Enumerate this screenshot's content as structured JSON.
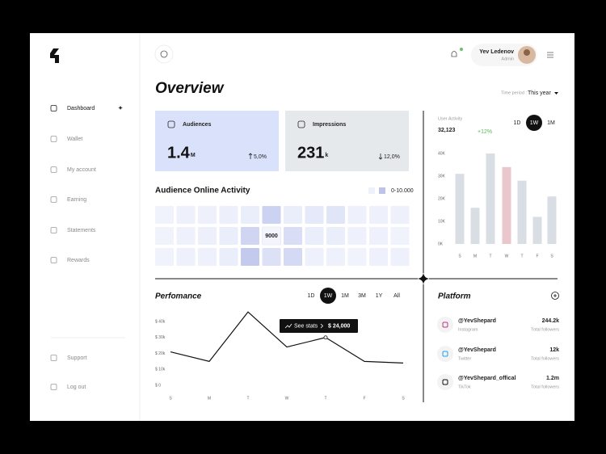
{
  "sidebar": {
    "nav": [
      "Dashboard",
      "Wallet",
      "My account",
      "Earning",
      "Statements",
      "Rewards"
    ],
    "active": 0,
    "bottom": [
      "Support",
      "Log out"
    ]
  },
  "header": {
    "name": "Yev Ledenov",
    "role": "Admin"
  },
  "overview": {
    "title": "Overview",
    "period_label": "Time period :",
    "period": "This year",
    "cards": [
      {
        "title": "Audiences",
        "value": "1.4",
        "unit": "M",
        "change": "5,0%",
        "trend": "up",
        "color": "#dae2fb"
      },
      {
        "title": "Impressions",
        "value": "231",
        "unit": "k",
        "change": "12,0%",
        "trend": "down",
        "color": "#e6e9ec"
      }
    ]
  },
  "activity": {
    "title": "Audience Online Activity",
    "legend": "0-10.000",
    "range": [
      0,
      10000
    ],
    "rows": [
      [
        800,
        1000,
        1000,
        1200,
        1500,
        5000,
        1500,
        2000,
        2500,
        1000,
        1000,
        1000
      ],
      [
        800,
        1000,
        1200,
        1500,
        4500,
        9000,
        3500,
        1500,
        1500,
        1000,
        1000,
        800
      ],
      [
        800,
        1000,
        1000,
        1500,
        6000,
        3000,
        4000,
        1000,
        1000,
        800,
        1000,
        1000
      ]
    ],
    "highlight": [
      1,
      5
    ]
  },
  "user_activity": {
    "type": "bar",
    "title": "User Activity",
    "total": "32,123",
    "change": "+12%",
    "periods": [
      "1D",
      "1W",
      "1M"
    ],
    "active_period": 1,
    "categories": [
      "S",
      "M",
      "T",
      "W",
      "T",
      "F",
      "S"
    ],
    "values": [
      31000,
      16000,
      40000,
      34000,
      28000,
      12000,
      21000
    ],
    "color": "#d9dee4",
    "highlight": 3,
    "highlight_color": "#e9c7cd",
    "ylim": [
      0,
      40000
    ],
    "yticks": [
      {
        "value": 0,
        "label": "0K"
      },
      {
        "value": 10000,
        "label": "10K"
      },
      {
        "value": 20000,
        "label": "20K"
      },
      {
        "value": 30000,
        "label": "30K"
      },
      {
        "value": 40000,
        "label": "40K"
      }
    ]
  },
  "performance": {
    "type": "line",
    "title": "Perfomance",
    "periods": [
      "1D",
      "1W",
      "1M",
      "3M",
      "1Y",
      "All"
    ],
    "active_period": 1,
    "categories": [
      "S",
      "M",
      "T",
      "W",
      "T",
      "F",
      "S"
    ],
    "values": [
      21000,
      15000,
      46000,
      24000,
      30000,
      15000,
      14000
    ],
    "color": "#111111",
    "ylim": [
      0,
      48000
    ],
    "yticks": [
      {
        "value": 40000,
        "label": "$ 40k"
      },
      {
        "value": 30000,
        "label": "$ 30k"
      },
      {
        "value": 20000,
        "label": "$ 20k"
      },
      {
        "value": 10000,
        "label": "$ 10k"
      },
      {
        "value": 0,
        "label": "$ 0"
      }
    ],
    "tooltip": {
      "action": "See stats",
      "value": "$ 24,000"
    }
  },
  "platform": {
    "title": "Platform",
    "items": [
      {
        "handle": "@YevShepard",
        "network": "Instagram",
        "followers": "244.2k",
        "caption": "Total followers"
      },
      {
        "handle": "@YevShepard",
        "network": "Twitter",
        "followers": "12k",
        "caption": "Total followers"
      },
      {
        "handle": "@YevShepard_offical",
        "network": "TikTok",
        "followers": "1.2m",
        "caption": "Total followers"
      }
    ]
  }
}
